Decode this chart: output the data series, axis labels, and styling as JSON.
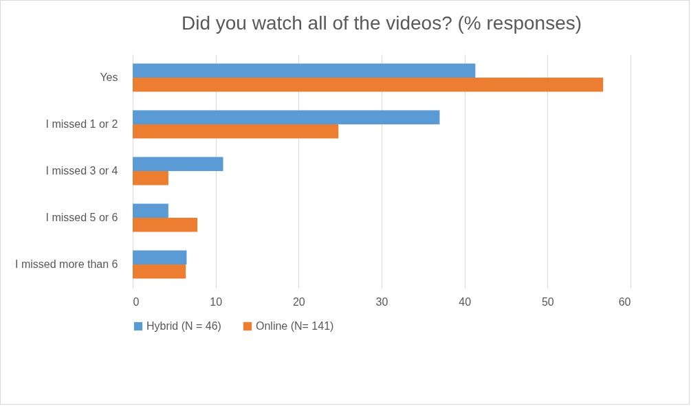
{
  "chart_data": {
    "type": "bar",
    "orientation": "horizontal",
    "title": "Did you watch all of the videos? (% responses)",
    "categories": [
      "Yes",
      "I missed 1 or 2",
      "I missed 3 or 4",
      "I missed 5 or 6",
      "I missed more than 6"
    ],
    "series": [
      {
        "name": "Hybrid (N = 46)",
        "color": "#5b9bd5",
        "values": [
          41.3,
          37.0,
          10.9,
          4.3,
          6.5
        ]
      },
      {
        "name": "Online (N= 141)",
        "color": "#ed7d31",
        "values": [
          56.7,
          24.8,
          4.3,
          7.8,
          6.4
        ]
      }
    ],
    "xlim": [
      0,
      60
    ],
    "xticks": [
      0,
      10,
      20,
      30,
      40,
      50,
      60
    ],
    "grid": "x",
    "legend": "bottom"
  }
}
